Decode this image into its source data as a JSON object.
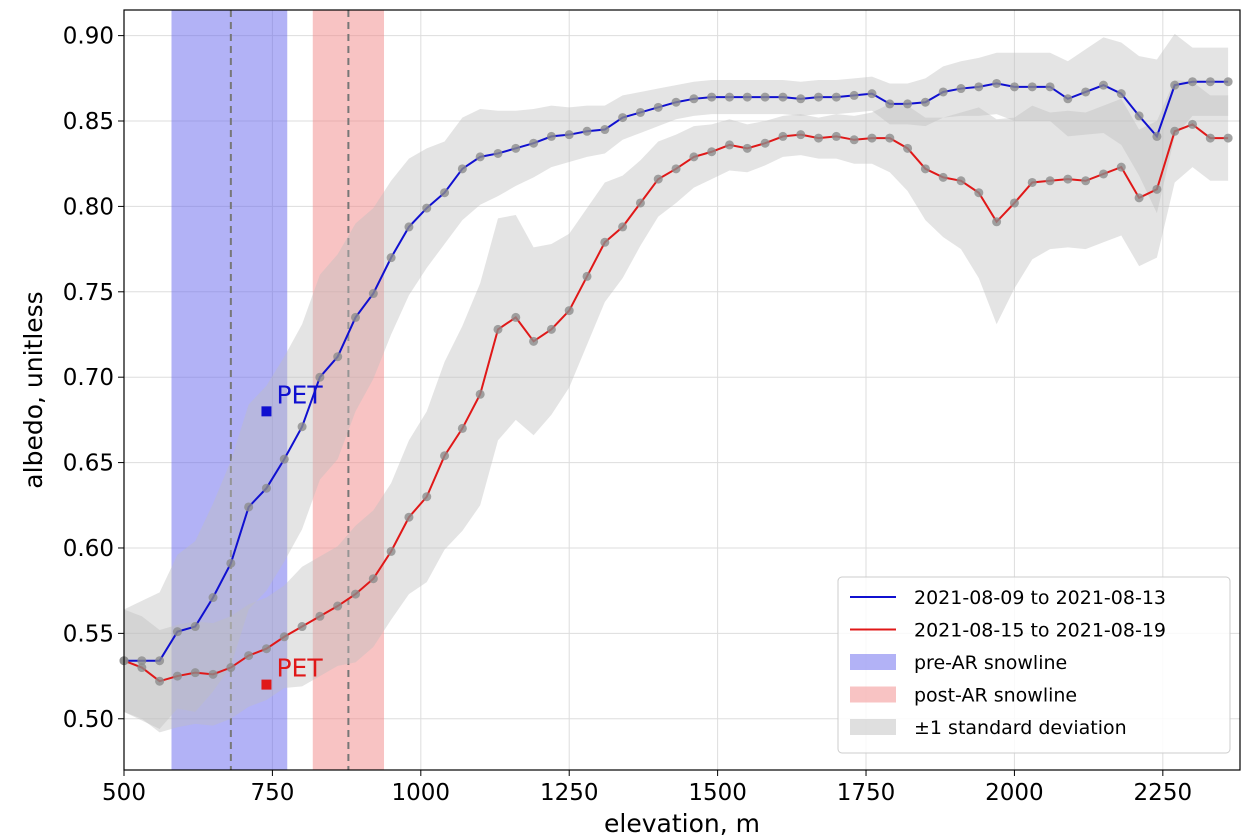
{
  "chart_data": {
    "type": "line",
    "xlabel": "elevation, m",
    "ylabel": "albedo, unitless",
    "xlim": [
      500,
      2380
    ],
    "ylim": [
      0.47,
      0.915
    ],
    "xticks": [
      500,
      750,
      1000,
      1250,
      1500,
      1750,
      2000,
      2250
    ],
    "xtick_labels": [
      "500",
      "750",
      "1000",
      "1250",
      "1500",
      "1750",
      "2000",
      "2250"
    ],
    "yticks": [
      0.5,
      0.55,
      0.6,
      0.65,
      0.7,
      0.75,
      0.8,
      0.85,
      0.9
    ],
    "ytick_labels": [
      "0.50",
      "0.55",
      "0.60",
      "0.65",
      "0.70",
      "0.75",
      "0.80",
      "0.85",
      "0.90"
    ],
    "grid": true,
    "legend_position": "lower-right",
    "x": [
      500,
      530,
      560,
      590,
      620,
      650,
      680,
      710,
      740,
      770,
      800,
      830,
      860,
      890,
      920,
      950,
      980,
      1010,
      1040,
      1070,
      1100,
      1130,
      1160,
      1190,
      1220,
      1250,
      1280,
      1310,
      1340,
      1370,
      1400,
      1430,
      1460,
      1490,
      1520,
      1550,
      1580,
      1610,
      1640,
      1670,
      1700,
      1730,
      1760,
      1790,
      1820,
      1850,
      1880,
      1910,
      1940,
      1970,
      2000,
      2030,
      2060,
      2090,
      2120,
      2150,
      2180,
      2210,
      2240,
      2270,
      2300,
      2330,
      2360
    ],
    "series": [
      {
        "name": "2021-08-09 to 2021-08-13",
        "color": "#1010d0",
        "values": [
          0.534,
          0.534,
          0.534,
          0.551,
          0.554,
          0.571,
          0.591,
          0.624,
          0.635,
          0.652,
          0.671,
          0.7,
          0.712,
          0.735,
          0.749,
          0.77,
          0.788,
          0.799,
          0.808,
          0.822,
          0.829,
          0.831,
          0.834,
          0.837,
          0.841,
          0.842,
          0.844,
          0.845,
          0.852,
          0.855,
          0.858,
          0.861,
          0.863,
          0.864,
          0.864,
          0.864,
          0.864,
          0.864,
          0.863,
          0.864,
          0.864,
          0.865,
          0.866,
          0.86,
          0.86,
          0.861,
          0.867,
          0.869,
          0.87,
          0.872,
          0.87,
          0.87,
          0.87,
          0.863,
          0.867,
          0.871,
          0.866,
          0.853,
          0.841,
          0.871,
          0.873,
          0.873,
          0.873
        ],
        "std": [
          0.03,
          0.035,
          0.04,
          0.045,
          0.05,
          0.055,
          0.06,
          0.06,
          0.06,
          0.06,
          0.06,
          0.06,
          0.06,
          0.055,
          0.05,
          0.045,
          0.04,
          0.035,
          0.03,
          0.03,
          0.028,
          0.025,
          0.022,
          0.02,
          0.018,
          0.016,
          0.015,
          0.014,
          0.013,
          0.012,
          0.011,
          0.01,
          0.01,
          0.01,
          0.01,
          0.01,
          0.01,
          0.01,
          0.01,
          0.01,
          0.01,
          0.01,
          0.01,
          0.012,
          0.012,
          0.014,
          0.015,
          0.016,
          0.017,
          0.018,
          0.02,
          0.02,
          0.02,
          0.022,
          0.025,
          0.028,
          0.03,
          0.035,
          0.045,
          0.03,
          0.02,
          0.02,
          0.02
        ]
      },
      {
        "name": "2021-08-15 to 2021-08-19",
        "color": "#e01818",
        "values": [
          0.534,
          0.53,
          0.522,
          0.525,
          0.527,
          0.526,
          0.53,
          0.537,
          0.541,
          0.548,
          0.554,
          0.56,
          0.566,
          0.573,
          0.582,
          0.598,
          0.618,
          0.63,
          0.654,
          0.67,
          0.69,
          0.728,
          0.735,
          0.721,
          0.728,
          0.739,
          0.759,
          0.779,
          0.788,
          0.802,
          0.816,
          0.822,
          0.829,
          0.832,
          0.836,
          0.834,
          0.837,
          0.841,
          0.842,
          0.84,
          0.841,
          0.839,
          0.84,
          0.84,
          0.834,
          0.822,
          0.817,
          0.815,
          0.808,
          0.791,
          0.802,
          0.814,
          0.815,
          0.816,
          0.815,
          0.819,
          0.823,
          0.805,
          0.81,
          0.844,
          0.848,
          0.84,
          0.84
        ],
        "std": [
          0.03,
          0.03,
          0.03,
          0.03,
          0.03,
          0.03,
          0.03,
          0.03,
          0.03,
          0.03,
          0.035,
          0.035,
          0.035,
          0.04,
          0.04,
          0.04,
          0.045,
          0.05,
          0.055,
          0.06,
          0.065,
          0.065,
          0.06,
          0.055,
          0.05,
          0.045,
          0.04,
          0.035,
          0.03,
          0.025,
          0.022,
          0.02,
          0.018,
          0.016,
          0.015,
          0.014,
          0.013,
          0.012,
          0.012,
          0.012,
          0.013,
          0.014,
          0.015,
          0.02,
          0.025,
          0.03,
          0.035,
          0.04,
          0.05,
          0.06,
          0.05,
          0.045,
          0.04,
          0.04,
          0.04,
          0.04,
          0.04,
          0.04,
          0.04,
          0.03,
          0.025,
          0.025,
          0.025
        ]
      }
    ],
    "bands": [
      {
        "name": "pre-AR snowline",
        "x0": 580,
        "x1": 775,
        "center": 680,
        "color": "#6666ee"
      },
      {
        "name": "post-AR snowline",
        "x0": 818,
        "x1": 938,
        "center": 878,
        "color": "#f28888"
      }
    ],
    "std_legend": "±1 standard deviation",
    "std_color": "#bfbfbf",
    "markers": [
      {
        "label": "PET",
        "x": 740,
        "y": 0.68,
        "color": "#1010d0"
      },
      {
        "label": "PET",
        "x": 740,
        "y": 0.52,
        "color": "#e01818"
      }
    ]
  }
}
